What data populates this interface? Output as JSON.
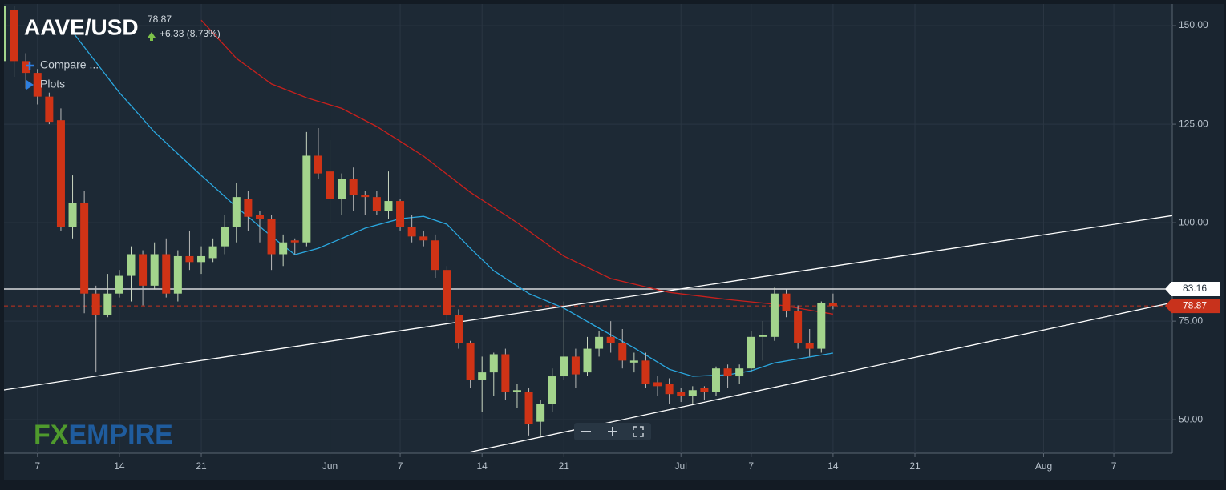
{
  "chart_data": {
    "type": "candlestick",
    "title": "AAVE/USD",
    "change": "+6.33 (8.73%)",
    "menu": [
      "Compare ...",
      "Plots"
    ],
    "watermark": [
      "FX",
      "EMPIRE"
    ],
    "x": [
      "05-04",
      "05-05",
      "05-06",
      "05-07",
      "05-08",
      "05-09",
      "05-10",
      "05-11",
      "05-12",
      "05-13",
      "05-14",
      "05-15",
      "05-16",
      "05-17",
      "05-18",
      "05-19",
      "05-20",
      "05-21",
      "05-22",
      "05-23",
      "05-24",
      "05-25",
      "05-26",
      "05-27",
      "05-28",
      "05-29",
      "05-30",
      "05-31",
      "06-01",
      "06-02",
      "06-03",
      "06-04",
      "06-05",
      "06-06",
      "06-07",
      "06-08",
      "06-09",
      "06-10",
      "06-11",
      "06-12",
      "06-13",
      "06-14",
      "06-15",
      "06-16",
      "06-17",
      "06-18",
      "06-19",
      "06-20",
      "06-21",
      "06-22",
      "06-23",
      "06-24",
      "06-25",
      "06-26",
      "06-27",
      "06-28",
      "06-29",
      "06-30",
      "07-01",
      "07-02",
      "07-03",
      "07-04",
      "07-05",
      "07-06",
      "07-07",
      "07-08",
      "07-09",
      "07-10",
      "07-11",
      "07-12",
      "07-13",
      "07-14"
    ],
    "open": [
      141,
      154,
      141,
      138,
      132,
      126,
      99,
      105,
      82,
      76.6,
      82,
      86.5,
      92,
      84,
      92,
      82,
      91.5,
      90,
      91,
      94,
      99,
      106,
      102,
      101,
      92,
      95.5,
      95,
      117,
      113,
      106,
      111,
      107,
      106.5,
      103,
      105.5,
      99,
      96.5,
      95.5,
      88,
      76.6,
      69.5,
      60,
      62,
      66.6,
      57,
      57,
      49.5,
      54,
      61,
      66,
      62,
      68,
      71,
      69.5,
      64.5,
      65,
      59.5,
      59,
      57,
      56,
      58,
      57,
      63,
      61,
      63,
      71,
      71,
      82,
      77.5,
      69.5,
      68,
      79.5
    ],
    "high": [
      155.5,
      155,
      143,
      139,
      133,
      129,
      112,
      108,
      84,
      87,
      88,
      94,
      93,
      95,
      96,
      93,
      98,
      94,
      96,
      102,
      110,
      108,
      103,
      102,
      97,
      96,
      123,
      124,
      121,
      112.5,
      114,
      108,
      108,
      113,
      106,
      102,
      98,
      97,
      89,
      78,
      70,
      66,
      67,
      68,
      59,
      58,
      55,
      63,
      80,
      68,
      71,
      72.5,
      75,
      73,
      67,
      67,
      61,
      60.5,
      58,
      58.5,
      58.5,
      63.5,
      64,
      64,
      72.5,
      75,
      83.5,
      83,
      79,
      73,
      80,
      82
    ],
    "low": [
      140,
      137,
      134,
      130,
      125,
      98,
      96,
      77,
      62,
      76,
      81,
      80,
      79,
      83,
      81,
      80,
      88,
      87,
      90,
      92,
      95,
      98,
      95,
      88,
      89,
      92,
      94,
      111,
      100,
      102,
      103,
      102,
      102,
      101,
      98,
      95,
      94,
      86,
      75,
      68,
      58,
      52,
      56,
      55,
      53,
      46,
      46,
      52,
      60,
      58,
      61,
      66,
      67,
      63,
      62,
      58,
      56,
      54,
      54.5,
      54,
      55,
      56,
      58,
      59,
      62,
      65,
      70,
      76,
      68,
      66,
      67,
      78
    ],
    "close": [
      155,
      141,
      138,
      132,
      125.6,
      99,
      105,
      82,
      76.6,
      82,
      86.5,
      92,
      84,
      92,
      82,
      91.5,
      90,
      91.5,
      94,
      99,
      106.5,
      101.5,
      101,
      92,
      95,
      95,
      117,
      112.5,
      106,
      111,
      107,
      106.5,
      103,
      105.5,
      99,
      96.5,
      95.5,
      88,
      76.6,
      69.5,
      60,
      62,
      66.6,
      57,
      57.5,
      49,
      54,
      61,
      66,
      61.5,
      68,
      71,
      69.5,
      65,
      65,
      59,
      58.5,
      56.5,
      56,
      57.5,
      57,
      63,
      61,
      63,
      71,
      71.5,
      82,
      77.5,
      69.5,
      68,
      79.5,
      78.87
    ],
    "up_color": "#a3d48c",
    "down_color": "#cf3316",
    "moving_averages": [
      {
        "color": "#2aa7df",
        "x": [
          "05-10",
          "05-14",
          "05-17",
          "05-21",
          "05-24",
          "05-27",
          "05-29",
          "05-31",
          "06-02",
          "06-04",
          "06-07",
          "06-09",
          "06-11",
          "06-13",
          "06-15",
          "06-18",
          "06-21",
          "06-24",
          "06-27",
          "06-30",
          "07-02",
          "07-05",
          "07-07",
          "07-09",
          "07-11",
          "07-14"
        ],
        "values": [
          148.4,
          133,
          123,
          112,
          104,
          96.5,
          91.9,
          93.5,
          96,
          98.6,
          101,
          101.6,
          99.6,
          93.5,
          87.8,
          82,
          78.3,
          73.2,
          68.2,
          62.8,
          61,
          61.4,
          62.4,
          64.4,
          65.4,
          66.9
        ]
      },
      {
        "color": "#c8201c",
        "x": [
          "05-21",
          "05-24",
          "05-27",
          "05-30",
          "06-02",
          "06-05",
          "06-09",
          "06-13",
          "06-17",
          "06-21",
          "06-25",
          "06-30",
          "07-05",
          "07-09",
          "07-14"
        ],
        "values": [
          151.4,
          141.7,
          135.2,
          131.7,
          129,
          124.4,
          116.9,
          107.7,
          100,
          91.5,
          85.8,
          82.3,
          80.5,
          79.3,
          76.8
        ]
      }
    ],
    "trendlines": [
      {
        "color": "#ffffff",
        "x": [
          "05-04",
          "08-12"
        ],
        "values": [
          57.5,
          101.8
        ]
      },
      {
        "color": "#ffffff",
        "x": [
          "06-13",
          "08-12"
        ],
        "values": [
          41.8,
          79.7
        ]
      }
    ],
    "level": {
      "value": 83.16,
      "label": "83.16",
      "color": "#ffffff"
    },
    "last_color": "#c8321c",
    "xlim": [
      "05-04",
      "08-12"
    ],
    "ylim": [
      41.5,
      155.5
    ],
    "yticks": [
      {
        "value": 50,
        "label": "50.00"
      },
      {
        "value": 75,
        "label": "75.00"
      },
      {
        "value": 100,
        "label": "100.00"
      },
      {
        "value": 125,
        "label": "125.00"
      },
      {
        "value": 150,
        "label": "150.00"
      }
    ],
    "xticks": [
      {
        "value": "05-07",
        "label": "7"
      },
      {
        "value": "05-14",
        "label": "14"
      },
      {
        "value": "05-21",
        "label": "21"
      },
      {
        "value": "06-01",
        "label": "Jun"
      },
      {
        "value": "06-07",
        "label": "7"
      },
      {
        "value": "06-14",
        "label": "14"
      },
      {
        "value": "06-21",
        "label": "21"
      },
      {
        "value": "07-01",
        "label": "Jul"
      },
      {
        "value": "07-07",
        "label": "7"
      },
      {
        "value": "07-14",
        "label": "14"
      },
      {
        "value": "07-21",
        "label": "21"
      },
      {
        "value": "08-01",
        "label": "Aug"
      },
      {
        "value": "08-07",
        "label": "7"
      }
    ],
    "grid": true
  }
}
